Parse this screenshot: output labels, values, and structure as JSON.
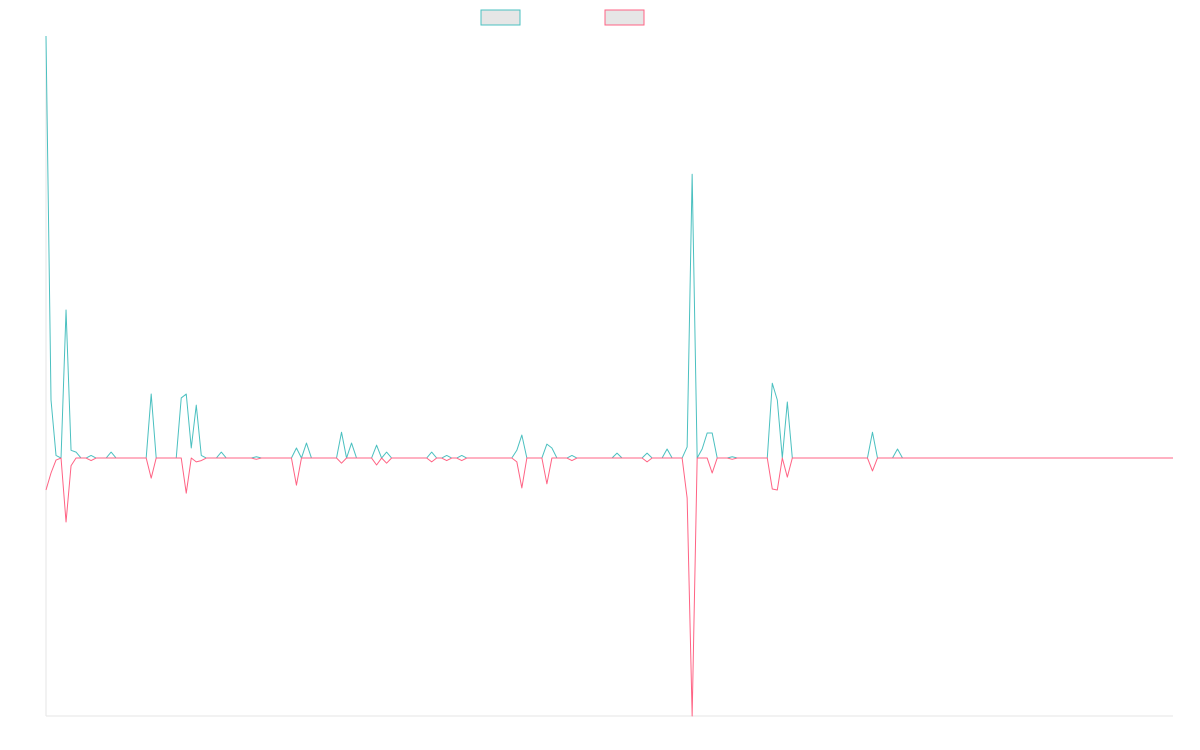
{
  "chart_data": {
    "type": "line",
    "ylim": [
      -100,
      163.6
    ],
    "grid": false,
    "legend": "top",
    "series": [
      {
        "color": "#4bc0c0",
        "values": [
          163.6,
          22.5,
          1,
          0,
          57.4,
          3,
          2.3,
          0,
          0,
          1,
          0,
          0,
          0,
          2.3,
          0,
          0,
          0,
          0,
          0,
          0,
          0,
          24.8,
          0,
          0,
          0,
          0,
          0,
          23.3,
          24.8,
          3.9,
          20.5,
          1,
          0,
          0,
          0,
          2.3,
          0,
          0,
          0,
          0,
          0,
          0,
          0.5,
          0,
          0,
          0,
          0,
          0,
          0,
          0,
          3.9,
          0,
          5.8,
          0,
          0,
          0,
          0,
          0,
          0,
          10,
          0,
          5.8,
          0,
          0,
          0,
          0,
          5,
          0,
          2.3,
          0,
          0,
          0,
          0,
          0,
          0,
          0,
          0,
          2.3,
          0,
          0,
          1,
          0,
          0,
          1,
          0,
          0,
          0,
          0,
          0,
          0,
          0,
          0,
          0,
          0,
          3,
          8.9,
          0,
          0,
          0,
          0,
          5.4,
          3.9,
          0,
          0,
          0,
          1,
          0,
          0,
          0,
          0,
          0,
          0,
          0,
          0,
          1.9,
          0,
          0,
          0,
          0,
          0,
          1.9,
          0,
          0,
          0,
          3.5,
          0,
          0,
          0,
          4.3,
          110,
          0,
          3.5,
          9.7,
          9.7,
          0,
          0,
          0,
          0.5,
          0,
          0,
          0,
          0,
          0,
          0,
          0,
          29,
          22.5,
          0,
          21.7,
          0,
          0,
          0,
          0,
          0,
          0,
          0,
          0,
          0,
          0,
          0,
          0,
          0,
          0,
          0,
          0,
          10,
          0,
          0,
          0,
          0,
          3.5,
          0,
          0,
          0,
          0,
          0,
          0,
          0,
          0,
          0,
          0,
          0,
          0,
          0,
          0,
          0,
          0,
          0,
          0,
          0,
          0,
          0,
          0,
          0,
          0,
          0,
          0,
          0,
          0,
          0,
          0,
          0,
          0,
          0,
          0,
          0,
          0,
          0,
          0,
          0,
          0,
          0,
          0,
          0,
          0,
          0,
          0,
          0,
          0,
          0,
          0,
          0,
          0,
          0,
          0,
          0
        ]
      },
      {
        "color": "#ff6384",
        "values": [
          -12.4,
          -5.8,
          -0.8,
          0,
          -24.8,
          -3,
          0,
          0,
          0,
          -1,
          0,
          0,
          0,
          0,
          0,
          0,
          0,
          0,
          0,
          0,
          0,
          -7.8,
          0,
          0,
          0,
          0,
          0,
          0,
          -13.6,
          0,
          -1.5,
          -1,
          0,
          0,
          0,
          0,
          0,
          0,
          0,
          0,
          0,
          0,
          -0.5,
          0,
          0,
          0,
          0,
          0,
          0,
          0,
          -10.5,
          0,
          0,
          0,
          0,
          0,
          0,
          0,
          0,
          -2,
          0,
          0,
          0,
          0,
          0,
          0,
          -2.7,
          0,
          -2,
          0,
          0,
          0,
          0,
          0,
          0,
          0,
          0,
          -1.5,
          0,
          0,
          -1,
          0,
          0,
          -1,
          0,
          0,
          0,
          0,
          0,
          0,
          0,
          0,
          0,
          0,
          -1.5,
          -11.6,
          0,
          0,
          0,
          0,
          -10,
          0,
          0,
          0,
          0,
          -1,
          0,
          0,
          0,
          0,
          0,
          0,
          0,
          0,
          0,
          0,
          0,
          0,
          0,
          0,
          -1.5,
          0,
          0,
          0,
          0,
          0,
          0,
          0,
          -15.5,
          -100,
          0,
          0,
          0,
          -5.8,
          0,
          0,
          0,
          -0.5,
          0,
          0,
          0,
          0,
          0,
          0,
          0,
          -12,
          -12.4,
          0,
          -7.4,
          0,
          0,
          0,
          0,
          0,
          0,
          0,
          0,
          0,
          0,
          0,
          0,
          0,
          0,
          0,
          0,
          -5,
          0,
          0,
          0,
          0,
          0,
          0,
          0,
          0,
          0,
          0,
          0,
          0,
          0,
          0,
          0,
          0,
          0,
          0,
          0,
          0,
          0,
          0,
          0,
          0,
          0,
          0,
          0,
          0,
          0,
          0,
          0,
          0,
          0,
          0,
          0,
          0,
          0,
          0,
          0,
          0,
          0,
          0,
          0,
          0,
          0,
          0,
          0,
          0,
          0,
          0,
          0,
          0,
          0,
          0,
          0,
          0,
          0,
          0,
          0,
          0
        ]
      }
    ]
  }
}
